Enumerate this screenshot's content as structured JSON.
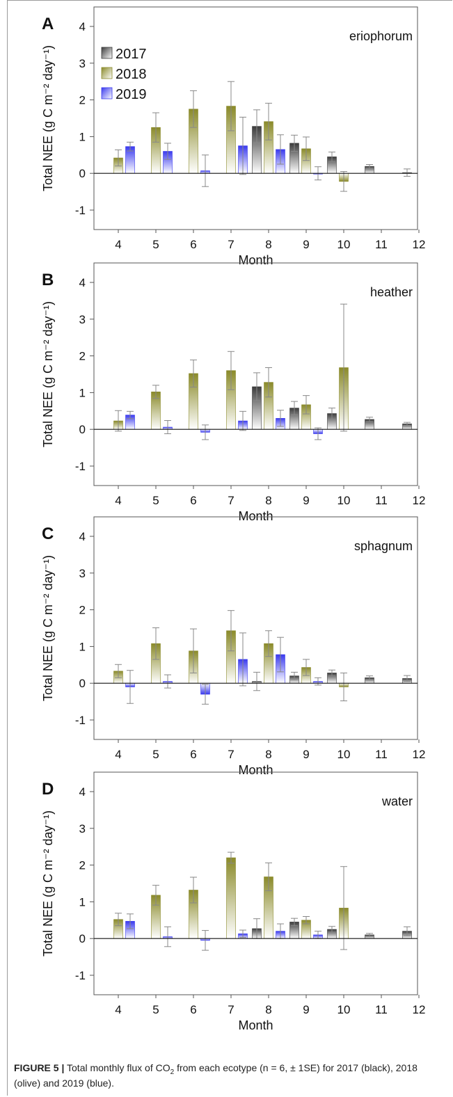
{
  "chart_data": [
    {
      "type": "bar",
      "panel": "A",
      "site": "eriophorum",
      "xlabel": "Month",
      "ylabel": "Total NEE (g C m⁻² day⁻¹)",
      "ylim": [
        -1,
        4
      ],
      "yticks": [
        "-1",
        "0",
        "1",
        "2",
        "3",
        "4"
      ],
      "categories": [
        "4",
        "5",
        "6",
        "7",
        "8",
        "9",
        "10",
        "11",
        "12"
      ],
      "series": [
        {
          "name": "2017",
          "values": [
            null,
            null,
            null,
            null,
            1.28,
            0.82,
            0.45,
            0.19,
            0.02
          ],
          "errors": [
            null,
            null,
            null,
            null,
            0.45,
            0.22,
            0.13,
            0.05,
            0.1
          ]
        },
        {
          "name": "2018",
          "values": [
            0.42,
            1.25,
            1.75,
            1.83,
            1.41,
            0.67,
            -0.22,
            null,
            null
          ],
          "errors": [
            0.22,
            0.4,
            0.5,
            0.67,
            0.5,
            0.32,
            0.27,
            null,
            null
          ]
        },
        {
          "name": "2019",
          "values": [
            0.73,
            0.6,
            0.07,
            0.75,
            0.65,
            0.0,
            null,
            null,
            null
          ],
          "errors": [
            0.12,
            0.22,
            0.43,
            0.78,
            0.4,
            0.18,
            null,
            null,
            null
          ]
        }
      ],
      "legend": [
        "2017",
        "2018",
        "2019"
      ],
      "legend_position": "top-left"
    },
    {
      "type": "bar",
      "panel": "B",
      "site": "heather",
      "xlabel": "Month",
      "ylabel": "Total NEE (g C m⁻² day⁻¹)",
      "ylim": [
        -1,
        4
      ],
      "yticks": [
        "-1",
        "0",
        "1",
        "2",
        "3",
        "4"
      ],
      "categories": [
        "4",
        "5",
        "6",
        "7",
        "8",
        "9",
        "10",
        "11",
        "12"
      ],
      "series": [
        {
          "name": "2017",
          "values": [
            null,
            null,
            null,
            null,
            1.16,
            0.58,
            0.43,
            0.27,
            0.15
          ],
          "errors": [
            null,
            null,
            null,
            null,
            0.38,
            0.18,
            0.15,
            0.06,
            0.04
          ]
        },
        {
          "name": "2018",
          "values": [
            0.23,
            1.02,
            1.52,
            1.6,
            1.28,
            0.67,
            1.68,
            null,
            null
          ],
          "errors": [
            0.28,
            0.18,
            0.37,
            0.52,
            0.4,
            0.25,
            1.73,
            null,
            null
          ]
        },
        {
          "name": "2019",
          "values": [
            0.39,
            0.06,
            -0.08,
            0.23,
            0.3,
            -0.12,
            null,
            null,
            null
          ],
          "errors": [
            0.1,
            0.18,
            0.2,
            0.26,
            0.22,
            0.16,
            null,
            null,
            null
          ]
        }
      ]
    },
    {
      "type": "bar",
      "panel": "C",
      "site": "sphagnum",
      "xlabel": "Month",
      "ylabel": "Total NEE (g C m⁻² day⁻¹)",
      "ylim": [
        -1,
        4
      ],
      "yticks": [
        "-1",
        "0",
        "1",
        "2",
        "3",
        "4"
      ],
      "categories": [
        "4",
        "5",
        "6",
        "7",
        "8",
        "9",
        "10",
        "11",
        "12"
      ],
      "series": [
        {
          "name": "2017",
          "values": [
            null,
            null,
            null,
            null,
            0.05,
            0.2,
            0.28,
            0.15,
            0.13
          ],
          "errors": [
            null,
            null,
            null,
            null,
            0.25,
            0.1,
            0.08,
            0.05,
            0.08
          ]
        },
        {
          "name": "2018",
          "values": [
            0.33,
            1.08,
            0.88,
            1.43,
            1.08,
            0.43,
            -0.1,
            null,
            null
          ],
          "errors": [
            0.18,
            0.43,
            0.6,
            0.55,
            0.35,
            0.22,
            0.38,
            null,
            null
          ]
        },
        {
          "name": "2019",
          "values": [
            -0.1,
            0.05,
            -0.3,
            0.65,
            0.78,
            0.05,
            null,
            null,
            null
          ],
          "errors": [
            0.45,
            0.18,
            0.27,
            0.72,
            0.47,
            0.1,
            null,
            null,
            null
          ]
        }
      ]
    },
    {
      "type": "bar",
      "panel": "D",
      "site": "water",
      "xlabel": "Month",
      "ylabel": "Total NEE (g C m⁻² day⁻¹)",
      "ylim": [
        -1,
        4
      ],
      "yticks": [
        "-1",
        "0",
        "1",
        "2",
        "3",
        "4"
      ],
      "categories": [
        "4",
        "5",
        "6",
        "7",
        "8",
        "9",
        "10",
        "11",
        "12"
      ],
      "series": [
        {
          "name": "2017",
          "values": [
            null,
            null,
            null,
            null,
            0.27,
            0.45,
            0.25,
            0.1,
            0.2
          ],
          "errors": [
            null,
            null,
            null,
            null,
            0.27,
            0.1,
            0.08,
            0.04,
            0.12
          ]
        },
        {
          "name": "2018",
          "values": [
            0.52,
            1.18,
            1.32,
            2.2,
            1.68,
            0.5,
            0.83,
            null,
            null
          ],
          "errors": [
            0.17,
            0.27,
            0.35,
            0.15,
            0.38,
            0.1,
            1.13,
            null,
            null
          ]
        },
        {
          "name": "2019",
          "values": [
            0.47,
            0.05,
            -0.05,
            0.13,
            0.2,
            0.1,
            null,
            null,
            null
          ],
          "errors": [
            0.2,
            0.27,
            0.27,
            0.1,
            0.2,
            0.1,
            null,
            null,
            null
          ]
        }
      ]
    }
  ],
  "colors": {
    "2017": "#3c3c3c",
    "2018": "#8a8a2a",
    "2019": "#3a3aee"
  },
  "caption": {
    "figure": "FIGURE 5 |",
    "text_before_sub": " Total monthly flux of CO",
    "sub": "2",
    "text_after_sub": " from each ecotype (n = 6, ± 1SE) for 2017 (black), 2018 (olive) and 2019 (blue)."
  }
}
